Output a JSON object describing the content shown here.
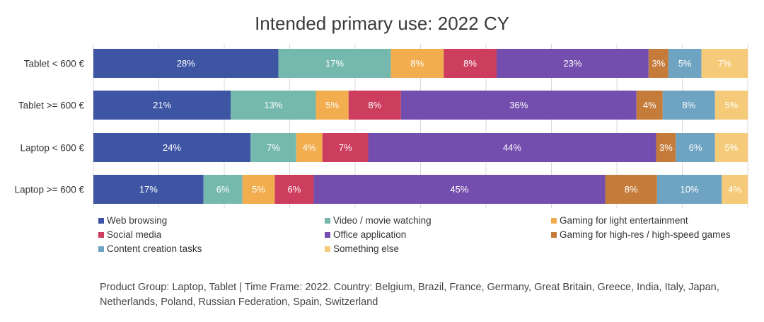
{
  "chart_data": {
    "type": "bar",
    "orientation": "horizontal",
    "stacked": true,
    "title": "Intended primary use: 2022 CY",
    "xlim": [
      0,
      100
    ],
    "grid": true,
    "legend_position": "bottom",
    "categories": [
      "Tablet < 600 €",
      "Tablet >= 600 €",
      "Laptop < 600 €",
      "Laptop >= 600 €"
    ],
    "series": [
      {
        "name": "Web browsing",
        "color": "#3d55a3",
        "label_color": "#ffffff",
        "values": [
          28,
          21,
          24,
          17
        ]
      },
      {
        "name": "Video / movie watching",
        "color": "#75b9ae",
        "label_color": "#ffffff",
        "values": [
          17,
          13,
          7,
          6
        ]
      },
      {
        "name": "Gaming for light entertainment",
        "color": "#f2ad4e",
        "label_color": "#ffffff",
        "values": [
          8,
          5,
          4,
          5
        ]
      },
      {
        "name": "Social media",
        "color": "#cc3d5e",
        "label_color": "#ffffff",
        "values": [
          8,
          8,
          7,
          6
        ]
      },
      {
        "name": "Office application",
        "color": "#744eae",
        "label_color": "#ffffff",
        "values": [
          23,
          36,
          44,
          45
        ]
      },
      {
        "name": "Gaming for high-res / high-speed games",
        "color": "#c57c3b",
        "label_color": "#ffffff",
        "values": [
          3,
          4,
          3,
          8
        ]
      },
      {
        "name": "Content creation tasks",
        "color": "#6ea3c2",
        "label_color": "#ffffff",
        "values": [
          5,
          8,
          6,
          10
        ]
      },
      {
        "name": "Something else",
        "color": "#f5cb79",
        "label_color": "#ffffff",
        "values": [
          7,
          5,
          5,
          4
        ]
      }
    ]
  },
  "footnote": "Product Group: Laptop, Tablet | Time Frame: 2022. Country: Belgium, Brazil, France, Germany, Great Britain, Greece, India, Italy, Japan, Netherlands, Poland, Russian Federation, Spain, Switzerland"
}
